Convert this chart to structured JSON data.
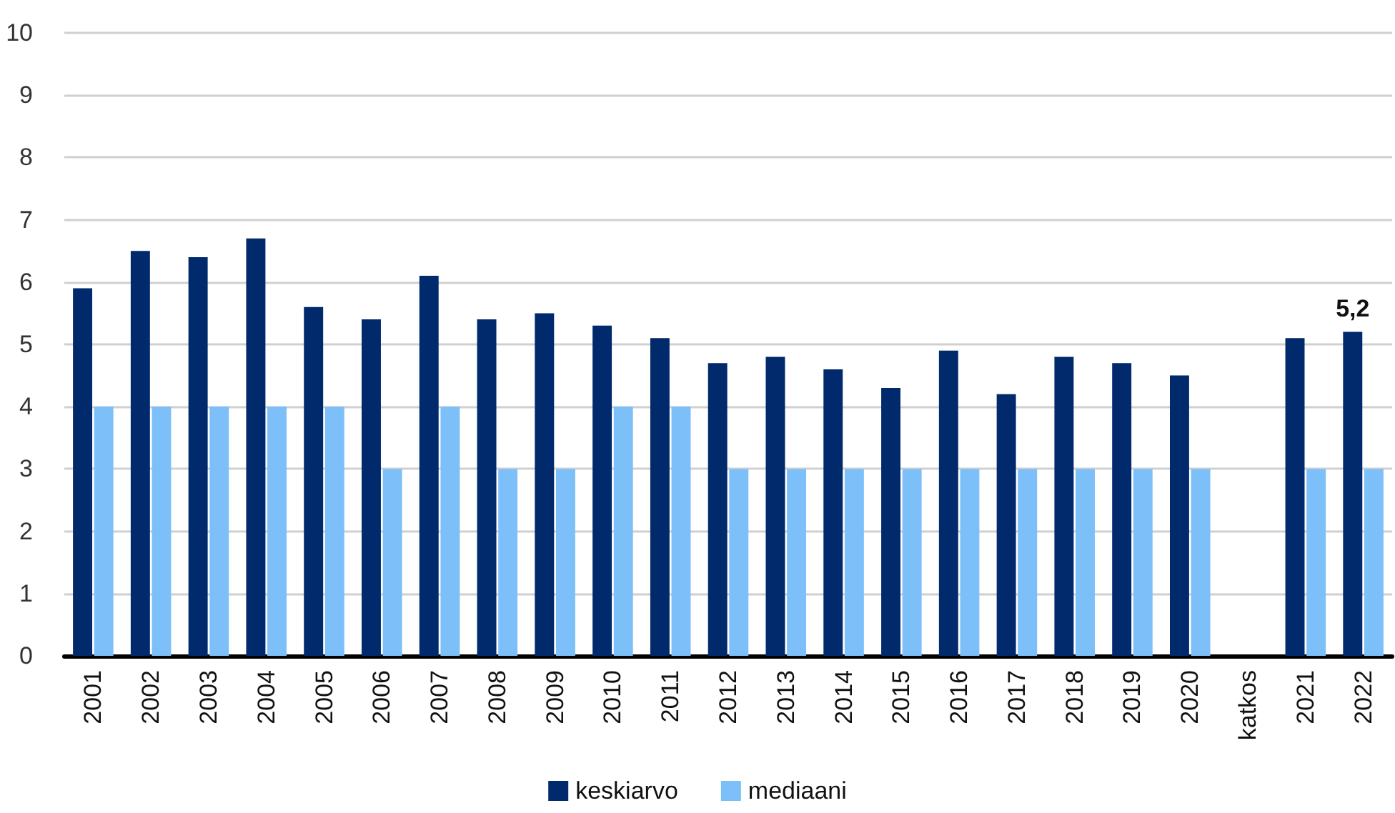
{
  "chart_data": {
    "type": "bar",
    "categories": [
      "2001",
      "2002",
      "2003",
      "2004",
      "2005",
      "2006",
      "2007",
      "2008",
      "2009",
      "2010",
      "2011",
      "2012",
      "2013",
      "2014",
      "2015",
      "2016",
      "2017",
      "2018",
      "2019",
      "2020",
      "katkos",
      "2021",
      "2022"
    ],
    "series": [
      {
        "name": "keskiarvo",
        "color": "#002a6c",
        "values": [
          5.9,
          6.5,
          6.4,
          6.7,
          5.6,
          5.4,
          6.1,
          5.4,
          5.5,
          5.3,
          5.1,
          4.7,
          4.8,
          4.6,
          4.3,
          4.9,
          4.2,
          4.8,
          4.7,
          4.5,
          null,
          5.1,
          5.2
        ],
        "value_labels": [
          null,
          null,
          null,
          null,
          null,
          null,
          null,
          null,
          null,
          null,
          null,
          null,
          null,
          null,
          null,
          null,
          null,
          null,
          null,
          null,
          null,
          null,
          "5,2"
        ]
      },
      {
        "name": "mediaani",
        "color": "#7dbff8",
        "values": [
          4,
          4,
          4,
          4,
          4,
          3,
          4,
          3,
          3,
          4,
          4,
          3,
          3,
          3,
          3,
          3,
          3,
          3,
          3,
          3,
          null,
          3,
          3
        ]
      }
    ],
    "ylim": [
      0,
      10
    ],
    "yticks": [
      0,
      1,
      2,
      3,
      4,
      5,
      6,
      7,
      8,
      9,
      10
    ],
    "grid": "y",
    "legend": "bottom"
  }
}
